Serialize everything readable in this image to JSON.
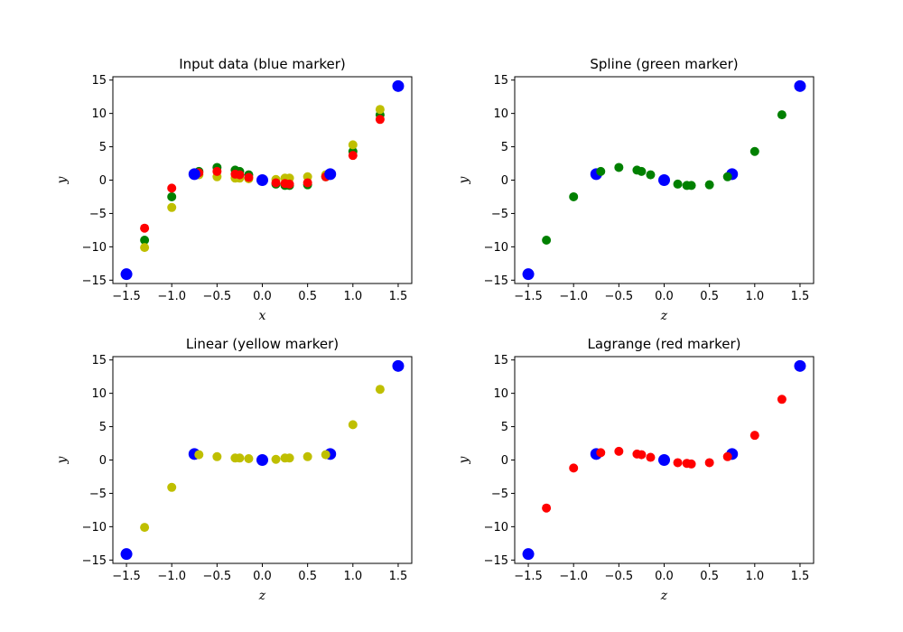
{
  "chart_data": [
    {
      "type": "scatter",
      "title": "Input data (blue marker)",
      "xlabel": "x",
      "ylabel": "y",
      "xlim": [
        -1.65,
        1.65
      ],
      "ylim": [
        -15.5,
        15.5
      ],
      "xticks": [
        -1.5,
        -1.0,
        -0.5,
        0.0,
        0.5,
        1.0,
        1.5
      ],
      "yticks": [
        -15,
        -10,
        -5,
        0,
        5,
        10,
        15
      ],
      "grid": false,
      "series": [
        {
          "color": "#008000",
          "size": "small",
          "x": [
            -1.3,
            -1.0,
            -0.7,
            -0.5,
            -0.3,
            -0.25,
            -0.15,
            0.15,
            0.25,
            0.3,
            0.5,
            0.7,
            1.0,
            1.3
          ],
          "y": [
            -9.0,
            -2.5,
            1.3,
            1.9,
            1.5,
            1.3,
            0.8,
            -0.6,
            -0.8,
            -0.8,
            -0.7,
            0.5,
            4.3,
            9.8
          ]
        },
        {
          "color": "#bfbf00",
          "size": "small",
          "x": [
            -1.3,
            -1.0,
            -0.7,
            -0.5,
            -0.3,
            -0.25,
            -0.15,
            0.15,
            0.25,
            0.3,
            0.5,
            0.7,
            1.0,
            1.3
          ],
          "y": [
            -10.1,
            -4.1,
            0.8,
            0.5,
            0.3,
            0.3,
            0.2,
            0.1,
            0.3,
            0.3,
            0.5,
            0.8,
            5.3,
            10.6
          ]
        },
        {
          "color": "#ff0000",
          "size": "small",
          "x": [
            -1.3,
            -1.0,
            -0.7,
            -0.5,
            -0.3,
            -0.25,
            -0.15,
            0.15,
            0.25,
            0.3,
            0.5,
            0.7,
            1.0,
            1.3
          ],
          "y": [
            -7.2,
            -1.2,
            1.1,
            1.3,
            0.9,
            0.8,
            0.4,
            -0.4,
            -0.5,
            -0.6,
            -0.4,
            0.5,
            3.7,
            9.1
          ]
        },
        {
          "color": "#0000ff",
          "size": "large",
          "x": [
            -1.5,
            -0.75,
            0.0,
            0.75,
            1.5
          ],
          "y": [
            -14.1,
            0.9,
            0.0,
            0.9,
            14.1
          ]
        }
      ]
    },
    {
      "type": "scatter",
      "title": "Spline (green marker)",
      "xlabel": "z",
      "ylabel": "y",
      "xlim": [
        -1.65,
        1.65
      ],
      "ylim": [
        -15.5,
        15.5
      ],
      "xticks": [
        -1.5,
        -1.0,
        -0.5,
        0.0,
        0.5,
        1.0,
        1.5
      ],
      "yticks": [
        -15,
        -10,
        -5,
        0,
        5,
        10,
        15
      ],
      "grid": false,
      "series": [
        {
          "color": "#0000ff",
          "size": "large",
          "x": [
            -1.5,
            -0.75,
            0.0,
            0.75,
            1.5
          ],
          "y": [
            -14.1,
            0.9,
            0.0,
            0.9,
            14.1
          ]
        },
        {
          "color": "#008000",
          "size": "small",
          "x": [
            -1.3,
            -1.0,
            -0.7,
            -0.5,
            -0.3,
            -0.25,
            -0.15,
            0.15,
            0.25,
            0.3,
            0.5,
            0.7,
            1.0,
            1.3
          ],
          "y": [
            -9.0,
            -2.5,
            1.3,
            1.9,
            1.5,
            1.3,
            0.8,
            -0.6,
            -0.8,
            -0.8,
            -0.7,
            0.5,
            4.3,
            9.8
          ]
        }
      ]
    },
    {
      "type": "scatter",
      "title": "Linear (yellow marker)",
      "xlabel": "z",
      "ylabel": "y",
      "xlim": [
        -1.65,
        1.65
      ],
      "ylim": [
        -15.5,
        15.5
      ],
      "xticks": [
        -1.5,
        -1.0,
        -0.5,
        0.0,
        0.5,
        1.0,
        1.5
      ],
      "yticks": [
        -15,
        -10,
        -5,
        0,
        5,
        10,
        15
      ],
      "grid": false,
      "series": [
        {
          "color": "#0000ff",
          "size": "large",
          "x": [
            -1.5,
            -0.75,
            0.0,
            0.75,
            1.5
          ],
          "y": [
            -14.1,
            0.9,
            0.0,
            0.9,
            14.1
          ]
        },
        {
          "color": "#bfbf00",
          "size": "small",
          "x": [
            -1.3,
            -1.0,
            -0.7,
            -0.5,
            -0.3,
            -0.25,
            -0.15,
            0.15,
            0.25,
            0.3,
            0.5,
            0.7,
            1.0,
            1.3
          ],
          "y": [
            -10.1,
            -4.1,
            0.8,
            0.5,
            0.3,
            0.3,
            0.2,
            0.1,
            0.3,
            0.3,
            0.5,
            0.8,
            5.3,
            10.6
          ]
        }
      ]
    },
    {
      "type": "scatter",
      "title": "Lagrange (red marker)",
      "xlabel": "z",
      "ylabel": "y",
      "xlim": [
        -1.65,
        1.65
      ],
      "ylim": [
        -15.5,
        15.5
      ],
      "xticks": [
        -1.5,
        -1.0,
        -0.5,
        0.0,
        0.5,
        1.0,
        1.5
      ],
      "yticks": [
        -15,
        -10,
        -5,
        0,
        5,
        10,
        15
      ],
      "grid": false,
      "series": [
        {
          "color": "#0000ff",
          "size": "large",
          "x": [
            -1.5,
            -0.75,
            0.0,
            0.75,
            1.5
          ],
          "y": [
            -14.1,
            0.9,
            0.0,
            0.9,
            14.1
          ]
        },
        {
          "color": "#ff0000",
          "size": "small",
          "x": [
            -1.3,
            -1.0,
            -0.7,
            -0.5,
            -0.3,
            -0.25,
            -0.15,
            0.15,
            0.25,
            0.3,
            0.5,
            0.7,
            1.0,
            1.3
          ],
          "y": [
            -7.2,
            -1.2,
            1.1,
            1.3,
            0.9,
            0.8,
            0.4,
            -0.4,
            -0.5,
            -0.6,
            -0.4,
            0.5,
            3.7,
            9.1
          ]
        }
      ]
    }
  ]
}
